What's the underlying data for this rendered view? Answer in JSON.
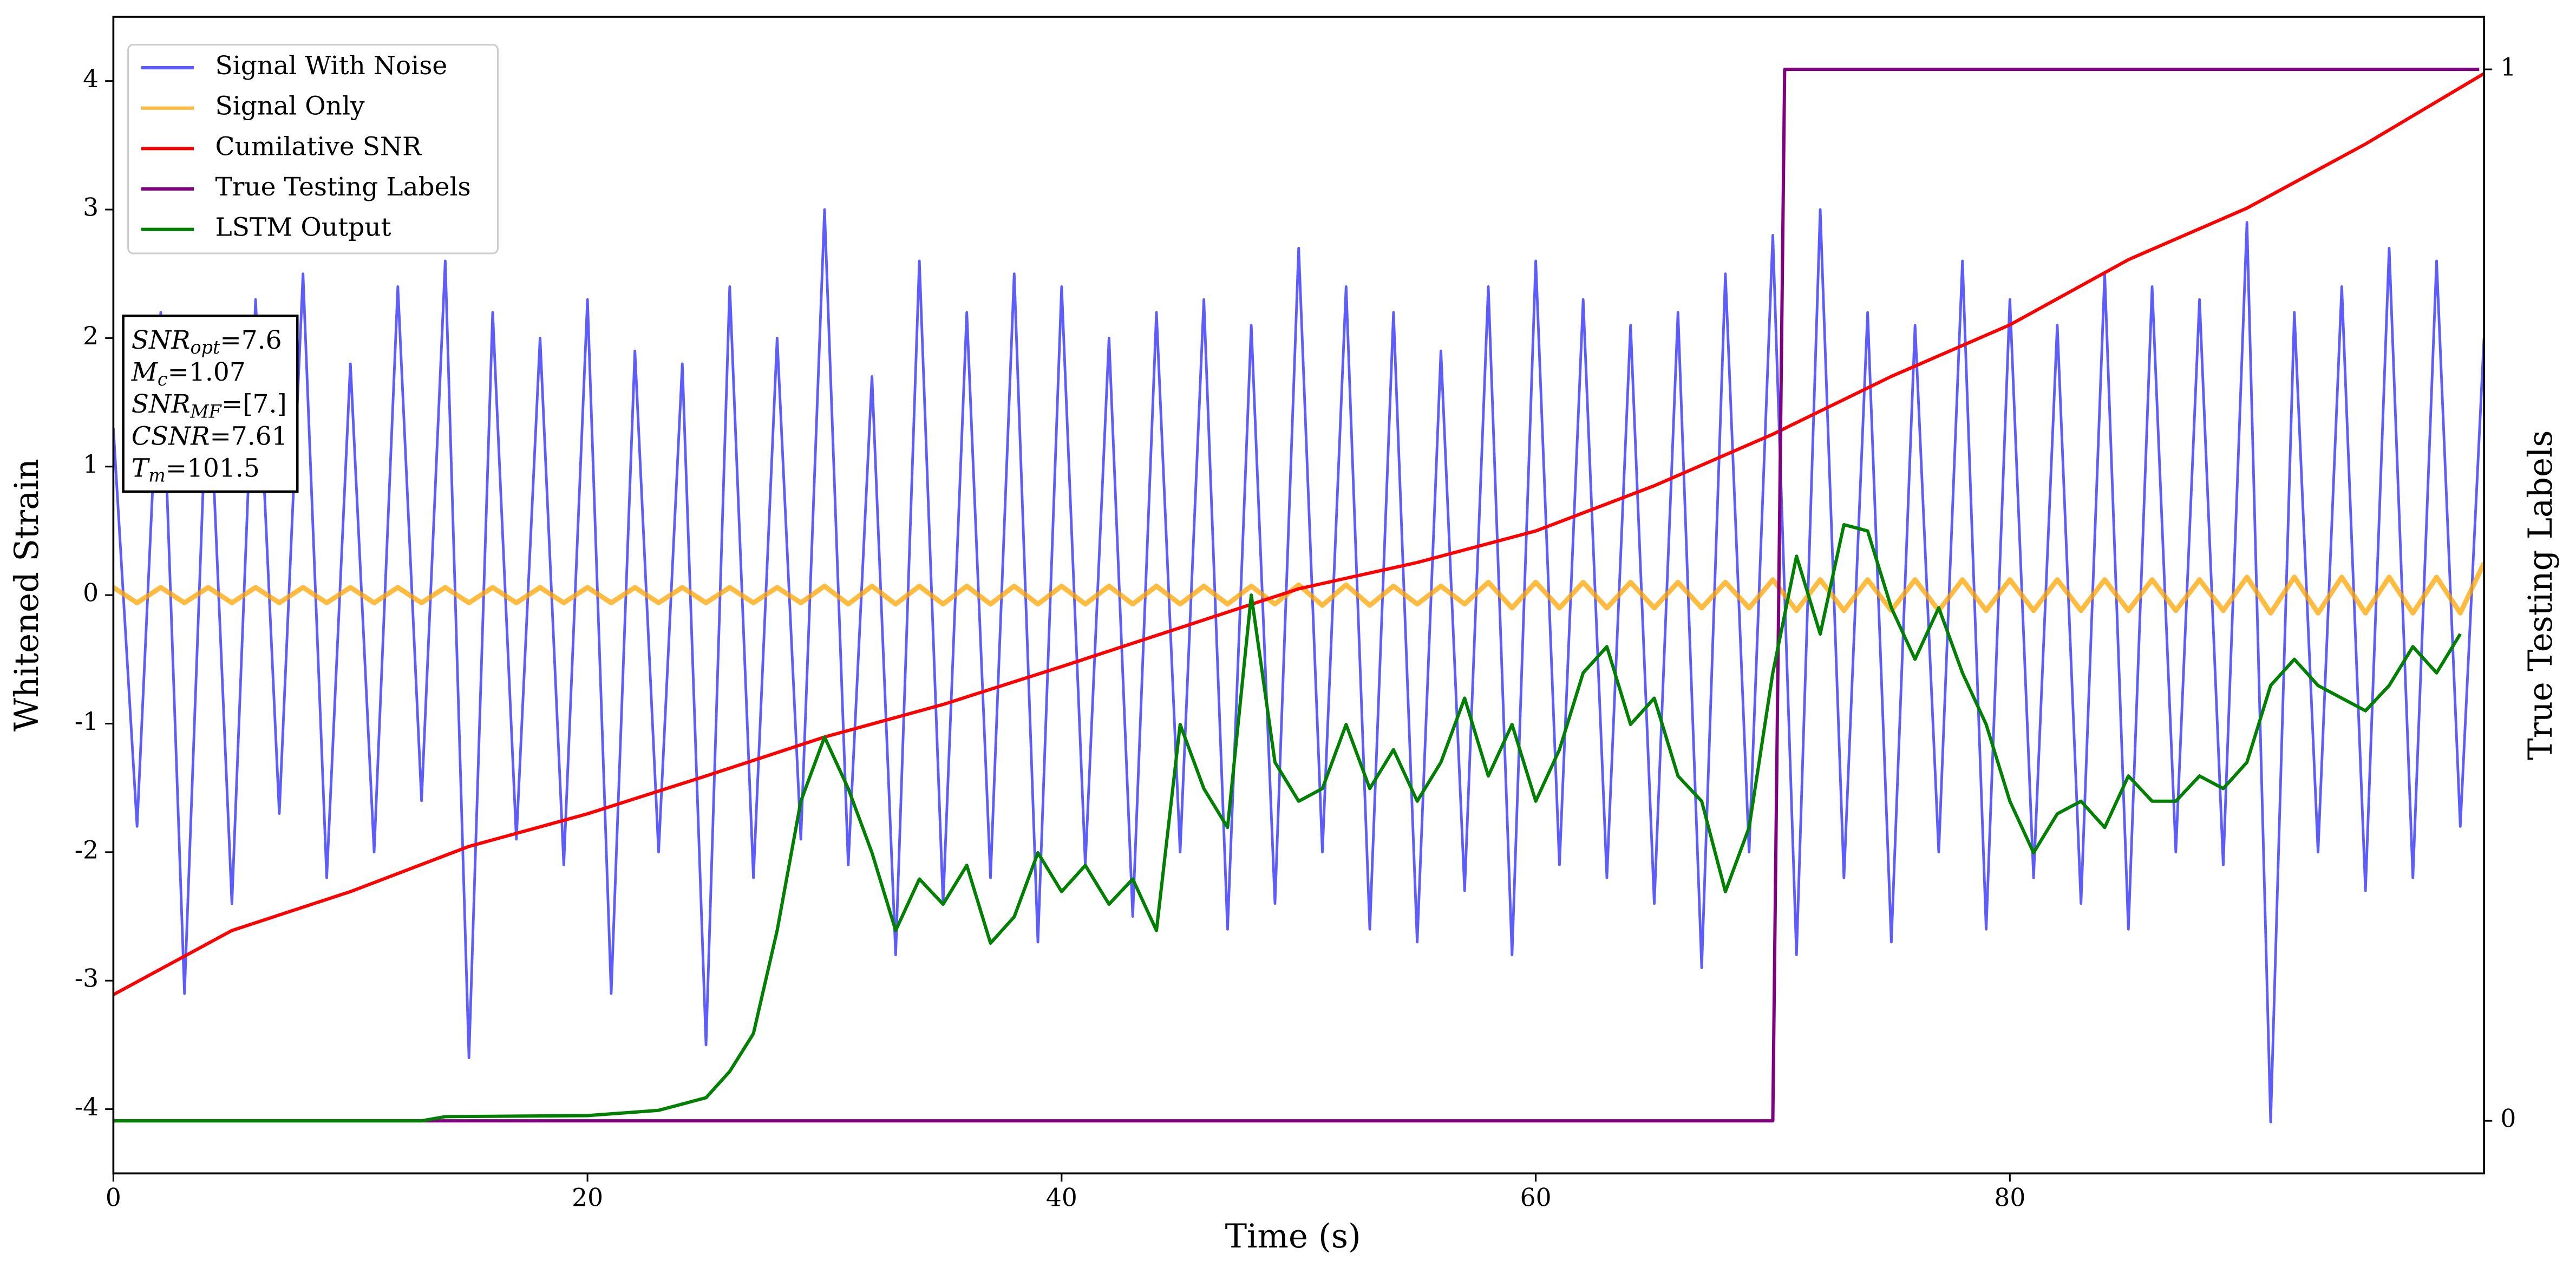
{
  "chart_data": {
    "type": "line",
    "xlabel": "Time (s)",
    "ylabel": "Whitened Strain",
    "y2label": "True Testing Labels",
    "xlim": [
      0,
      100
    ],
    "ylim": [
      -4.5,
      4.5
    ],
    "y2lim": [
      -0.05,
      1.05
    ],
    "xticks": [
      0,
      20,
      40,
      60,
      80
    ],
    "yticks": [
      -4,
      -3,
      -2,
      -1,
      0,
      1,
      2,
      3,
      4
    ],
    "y2ticks": [
      0,
      1
    ],
    "legend": "upper left",
    "series": [
      {
        "name": "Signal With Noise",
        "color": "#3333ff",
        "x": [
          0,
          1,
          2,
          3,
          4,
          5,
          6,
          7,
          8,
          9,
          10,
          11,
          12,
          13,
          14,
          15,
          16,
          17,
          18,
          19,
          20,
          21,
          22,
          23,
          24,
          25,
          26,
          27,
          28,
          29,
          30,
          31,
          32,
          33,
          34,
          35,
          36,
          37,
          38,
          39,
          40,
          41,
          42,
          43,
          44,
          45,
          46,
          47,
          48,
          49,
          50,
          51,
          52,
          53,
          54,
          55,
          56,
          57,
          58,
          59,
          60,
          61,
          62,
          63,
          64,
          65,
          66,
          67,
          68,
          69,
          70,
          71,
          72,
          73,
          74,
          75,
          76,
          77,
          78,
          79,
          80,
          81,
          82,
          83,
          84,
          85,
          86,
          87,
          88,
          89,
          90,
          91,
          92,
          93,
          94,
          95,
          96,
          97,
          98,
          99,
          100
        ],
        "values": [
          1.3,
          -1.8,
          2.2,
          -3.1,
          1.9,
          -2.4,
          2.3,
          -1.7,
          2.5,
          -2.2,
          1.8,
          -2.0,
          2.4,
          -1.6,
          2.6,
          -3.6,
          2.2,
          -1.9,
          2.0,
          -2.1,
          2.3,
          -3.1,
          1.9,
          -2.0,
          1.8,
          -3.5,
          2.4,
          -2.2,
          2.0,
          -1.9,
          3.0,
          -2.1,
          1.7,
          -2.8,
          2.6,
          -2.4,
          2.2,
          -2.2,
          2.5,
          -2.7,
          2.4,
          -2.1,
          2.0,
          -2.5,
          2.2,
          -2.0,
          2.3,
          -2.6,
          2.1,
          -2.4,
          2.7,
          -2.0,
          2.4,
          -2.6,
          2.2,
          -2.7,
          1.9,
          -2.3,
          2.4,
          -2.8,
          2.6,
          -2.1,
          2.3,
          -2.2,
          2.1,
          -2.4,
          2.2,
          -2.9,
          2.5,
          -2.0,
          2.8,
          -2.8,
          3.0,
          -2.2,
          2.2,
          -2.7,
          2.1,
          -2.0,
          2.6,
          -2.6,
          2.3,
          -2.2,
          2.1,
          -2.4,
          2.5,
          -2.6,
          2.4,
          -2.0,
          2.3,
          -2.1,
          2.9,
          -4.1,
          2.2,
          -2.0,
          2.4,
          -2.3,
          2.7,
          -2.2,
          2.6,
          -1.8,
          2.0
        ]
      },
      {
        "name": "Signal Only",
        "color": "#ffa500",
        "x": [
          0,
          1,
          2,
          3,
          4,
          5,
          6,
          7,
          8,
          9,
          10,
          11,
          12,
          13,
          14,
          15,
          16,
          17,
          18,
          19,
          20,
          21,
          22,
          23,
          24,
          25,
          26,
          27,
          28,
          29,
          30,
          31,
          32,
          33,
          34,
          35,
          36,
          37,
          38,
          39,
          40,
          41,
          42,
          43,
          44,
          45,
          46,
          47,
          48,
          49,
          50,
          51,
          52,
          53,
          54,
          55,
          56,
          57,
          58,
          59,
          60,
          61,
          62,
          63,
          64,
          65,
          66,
          67,
          68,
          69,
          70,
          71,
          72,
          73,
          74,
          75,
          76,
          77,
          78,
          79,
          80,
          81,
          82,
          83,
          84,
          85,
          86,
          87,
          88,
          89,
          90,
          91,
          92,
          93,
          94,
          95,
          96,
          97,
          98,
          99,
          100
        ],
        "values": [
          0.06,
          -0.06,
          0.06,
          -0.06,
          0.06,
          -0.06,
          0.06,
          -0.06,
          0.06,
          -0.06,
          0.06,
          -0.06,
          0.06,
          -0.06,
          0.06,
          -0.06,
          0.06,
          -0.06,
          0.06,
          -0.06,
          0.06,
          -0.06,
          0.06,
          -0.06,
          0.06,
          -0.06,
          0.06,
          -0.06,
          0.06,
          -0.06,
          0.07,
          -0.07,
          0.07,
          -0.07,
          0.07,
          -0.07,
          0.07,
          -0.07,
          0.07,
          -0.07,
          0.07,
          -0.07,
          0.07,
          -0.07,
          0.07,
          -0.07,
          0.07,
          -0.07,
          0.07,
          -0.07,
          0.08,
          -0.08,
          0.08,
          -0.08,
          0.07,
          -0.07,
          0.07,
          -0.07,
          0.1,
          -0.1,
          0.1,
          -0.1,
          0.1,
          -0.1,
          0.1,
          -0.1,
          0.1,
          -0.1,
          0.1,
          -0.1,
          0.12,
          -0.12,
          0.12,
          -0.12,
          0.12,
          -0.12,
          0.12,
          -0.12,
          0.12,
          -0.12,
          0.12,
          -0.12,
          0.12,
          -0.12,
          0.12,
          -0.12,
          0.12,
          -0.12,
          0.12,
          -0.12,
          0.14,
          -0.14,
          0.14,
          -0.14,
          0.14,
          -0.14,
          0.14,
          -0.14,
          0.14,
          -0.14,
          0.25
        ]
      },
      {
        "name": "Cumilative SNR",
        "color": "#ff0000",
        "axis": "y2",
        "x": [
          0,
          5,
          10,
          15,
          20,
          25,
          30,
          35,
          40,
          45,
          50,
          55,
          60,
          65,
          70,
          75,
          80,
          85,
          90,
          95,
          100
        ],
        "values": [
          0.12,
          0.181,
          0.218,
          0.261,
          0.292,
          0.328,
          0.365,
          0.396,
          0.432,
          0.469,
          0.506,
          0.531,
          0.561,
          0.604,
          0.653,
          0.708,
          0.757,
          0.819,
          0.868,
          0.929,
          0.996
        ]
      },
      {
        "name": "True Testing Labels",
        "color": "#800080",
        "axis": "y2",
        "x": [
          0,
          70,
          70.5,
          99.8
        ],
        "values": [
          0,
          0,
          1,
          1
        ]
      },
      {
        "name": "LSTM Output",
        "color": "#008000",
        "axis": "y2",
        "x": [
          0,
          13,
          14,
          20,
          23,
          25,
          26,
          27,
          28,
          29,
          30,
          31,
          32,
          33,
          34,
          35,
          36,
          37,
          38,
          39,
          40,
          41,
          42,
          43,
          44,
          45,
          46,
          47,
          48,
          49,
          50,
          51,
          52,
          53,
          54,
          55,
          56,
          57,
          58,
          59,
          60,
          61,
          62,
          63,
          64,
          65,
          66,
          67,
          68,
          69,
          70,
          71,
          72,
          73,
          74,
          75,
          76,
          77,
          78,
          79,
          80,
          81,
          82,
          83,
          84,
          85,
          86,
          87,
          88,
          89,
          90,
          91,
          92,
          93,
          94,
          95,
          96,
          97,
          98,
          99
        ],
        "values": [
          0,
          0,
          0.004,
          0.005,
          0.01,
          0.022,
          0.047,
          0.083,
          0.181,
          0.304,
          0.365,
          0.316,
          0.255,
          0.181,
          0.23,
          0.206,
          0.243,
          0.169,
          0.194,
          0.255,
          0.218,
          0.243,
          0.206,
          0.23,
          0.181,
          0.377,
          0.316,
          0.279,
          0.5,
          0.341,
          0.304,
          0.316,
          0.377,
          0.316,
          0.353,
          0.304,
          0.341,
          0.402,
          0.328,
          0.377,
          0.304,
          0.353,
          0.426,
          0.451,
          0.377,
          0.402,
          0.328,
          0.304,
          0.218,
          0.279,
          0.426,
          0.537,
          0.463,
          0.567,
          0.561,
          0.488,
          0.439,
          0.488,
          0.426,
          0.377,
          0.304,
          0.255,
          0.292,
          0.304,
          0.279,
          0.328,
          0.304,
          0.304,
          0.328,
          0.316,
          0.341,
          0.414,
          0.439,
          0.414,
          0.402,
          0.39,
          0.414,
          0.451,
          0.426,
          0.463
        ]
      }
    ],
    "annotations": [
      {
        "symbol": "SNR",
        "subscript": "opt",
        "text": "=7.6"
      },
      {
        "symbol": "M",
        "subscript": "c",
        "text": "=1.07"
      },
      {
        "symbol": "SNR",
        "subscript": "MF",
        "text": "=[7.]"
      },
      {
        "symbol": "CSNR",
        "subscript": "",
        "text": "=7.61"
      },
      {
        "symbol": "T",
        "subscript": "m",
        "text": "=101.5"
      }
    ]
  }
}
